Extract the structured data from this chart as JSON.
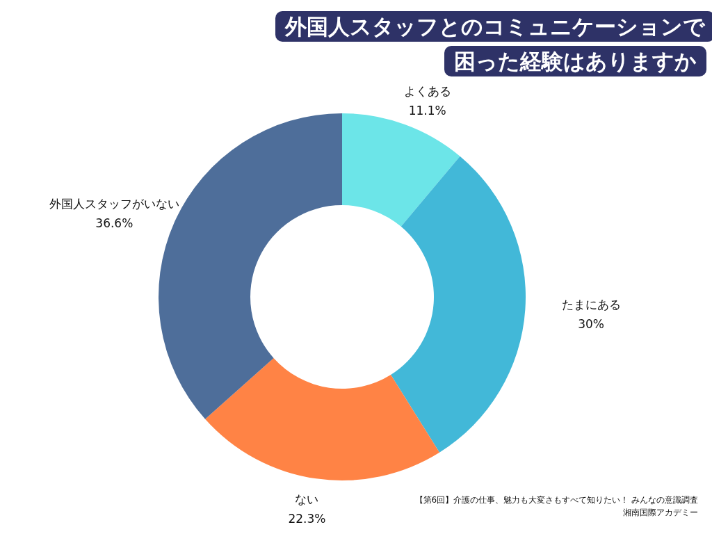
{
  "chart_data": {
    "type": "donut",
    "title": "外国人スタッフとのコミュニケーションで困った経験はありますか",
    "categories": [
      "よくある",
      "たまにある",
      "ない",
      "外国人スタッフがいない"
    ],
    "values": [
      11.1,
      30,
      22.3,
      36.6
    ],
    "value_labels": [
      "11.1%",
      "30%",
      "22.3%",
      "36.6%"
    ],
    "colors": [
      "#6ce5e8",
      "#42b8d8",
      "#ff8345",
      "#4e6e9a"
    ],
    "legend": false,
    "annotations": [
      "【第6回】介護の仕事、魅力も大変さもすべて知りたい！ みんなの意識調査",
      "湘南国際アカデミー"
    ]
  }
}
